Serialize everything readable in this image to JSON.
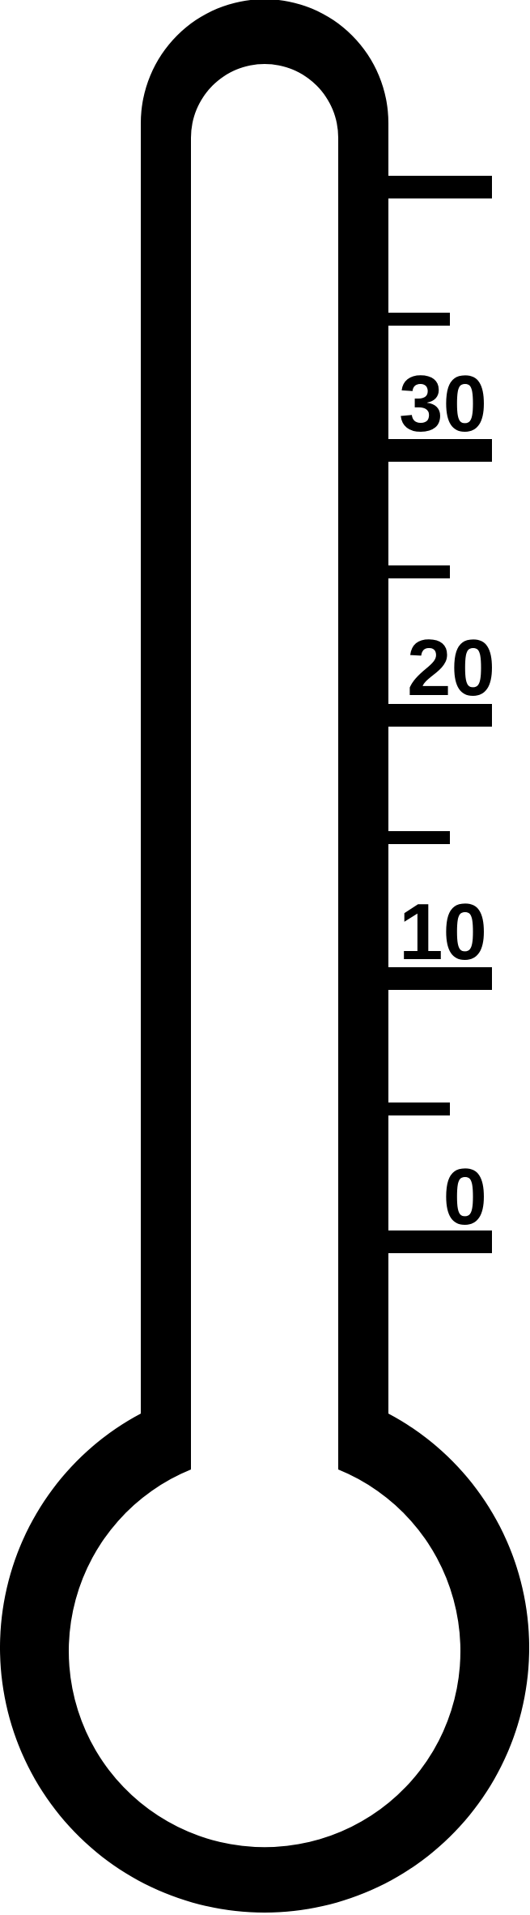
{
  "colors": {
    "outline": "#000000",
    "background": "#ffffff"
  },
  "scale": {
    "labels": [
      {
        "text": "30",
        "value": 30
      },
      {
        "text": "20",
        "value": 20
      },
      {
        "text": "10",
        "value": 10
      },
      {
        "text": "0",
        "value": 0
      }
    ]
  }
}
